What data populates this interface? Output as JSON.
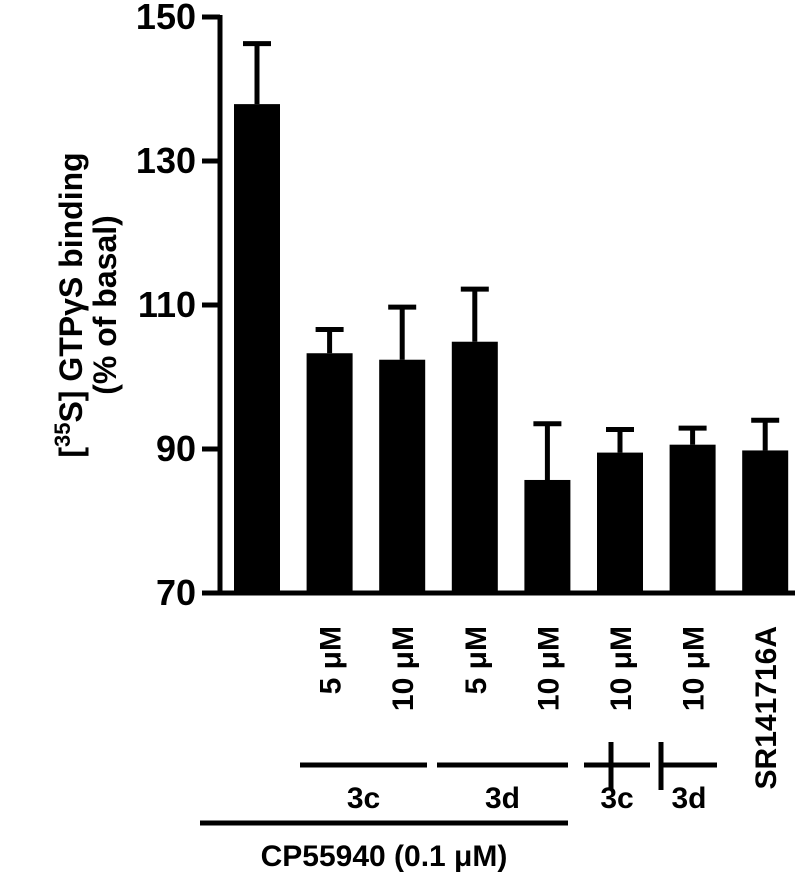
{
  "chart_data": {
    "type": "bar",
    "ylabel_line1_prefix": "[",
    "ylabel_line1_sup": "35",
    "ylabel_line1_rest": "S] GTPγS binding",
    "ylabel_line2": "(% of basal)",
    "ylim": [
      70,
      150
    ],
    "yticks": [
      70,
      90,
      110,
      130,
      150
    ],
    "grid": false,
    "legend": "none",
    "bar_color": "#000000",
    "categories": [
      "",
      "5 μM",
      "10 μM",
      "5 μM",
      "10 μM",
      "10 μM",
      "10 μM",
      "SR141716A"
    ],
    "values": [
      137.9,
      103.3,
      102.4,
      104.9,
      85.7,
      89.5,
      90.6,
      89.8
    ],
    "errors": [
      8.4,
      3.3,
      7.3,
      7.3,
      7.8,
      3.2,
      2.3,
      4.2
    ],
    "groups": [
      {
        "label": "3c",
        "from": 1,
        "to": 2
      },
      {
        "label": "3d",
        "from": 3,
        "to": 4
      },
      {
        "label": "3c",
        "from": 5,
        "to": 5
      },
      {
        "label": "3d",
        "from": 6,
        "to": 6
      },
      {
        "label": "CP55940 (0.1 μM)",
        "from": 0,
        "to": 6
      }
    ]
  }
}
